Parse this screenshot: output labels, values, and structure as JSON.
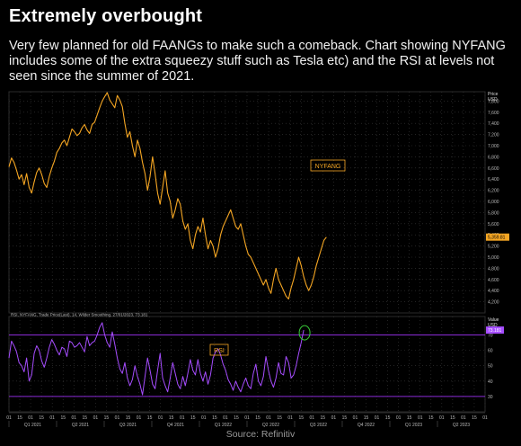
{
  "title": "Extremely overbought",
  "subtitle": "Very few planned for old FAANGs to make such a comeback. Chart showing NYFANG includes some of the extra squeezy stuff such as Tesla etc) and the RSI at levels not seen since the summer of 2021.",
  "source": "Source: Refinitiv",
  "colors": {
    "price_line": "#f5a623",
    "rsi_line": "#a64dff",
    "band": "#8a2bd6",
    "grid": "#3a3a3a"
  },
  "chart_data": [
    {
      "type": "line",
      "panel": "price",
      "label": "NYFANG",
      "axis_title": [
        "Price",
        "USD"
      ],
      "last_value_label": "5,359.81",
      "yticks": [
        4200,
        4400,
        4600,
        4800,
        5000,
        5200,
        5400,
        5600,
        5800,
        6000,
        6200,
        6400,
        6600,
        6800,
        7000,
        7200,
        7400,
        7600,
        7800
      ],
      "ylim": [
        4000,
        8000
      ],
      "grid": true,
      "series": [
        {
          "values": [
            6620,
            6780,
            6700,
            6560,
            6400,
            6480,
            6300,
            6500,
            6250,
            6150,
            6350,
            6520,
            6600,
            6480,
            6320,
            6250,
            6450,
            6600,
            6720,
            6880,
            6950,
            7050,
            7100,
            7000,
            7150,
            7300,
            7250,
            7180,
            7220,
            7320,
            7380,
            7280,
            7220,
            7380,
            7420,
            7550,
            7680,
            7800,
            7880,
            7950,
            7820,
            7750,
            7680,
            7900,
            7820,
            7700,
            7400,
            7150,
            7250,
            7000,
            6800,
            7100,
            6950,
            6700,
            6500,
            6200,
            6450,
            6800,
            6500,
            6150,
            5950,
            6250,
            6550,
            6150,
            6000,
            5700,
            5850,
            6050,
            5950,
            5650,
            5500,
            5600,
            5300,
            5150,
            5400,
            5550,
            5450,
            5700,
            5400,
            5150,
            5300,
            5200,
            5000,
            5150,
            5400,
            5550,
            5650,
            5750,
            5850,
            5700,
            5550,
            5500,
            5600,
            5400,
            5200,
            5050,
            5000,
            4900,
            4800,
            4700,
            4600,
            4500,
            4600,
            4450,
            4350,
            4600,
            4800,
            4600,
            4500,
            4400,
            4300,
            4250,
            4450,
            4600,
            4800,
            5000,
            4850,
            4650,
            4500,
            4400,
            4500,
            4650,
            4850,
            5000,
            5150,
            5300,
            5359.81
          ]
        }
      ]
    },
    {
      "type": "line",
      "panel": "rsi",
      "label": "RSI",
      "axis_title": [
        "Value",
        "USD"
      ],
      "legend_text": "RSI, NYFANG, Trade Price(Last), 14, Wilder Smoothing, 27/01/2023, 73.181",
      "last_value_label": "73.181",
      "yticks": [
        30,
        40,
        50,
        60,
        70
      ],
      "ylim": [
        20,
        82
      ],
      "bands": [
        30,
        70
      ],
      "grid": true,
      "series": [
        {
          "values": [
            55,
            66,
            63,
            59,
            52,
            50,
            46,
            55,
            40,
            44,
            58,
            63,
            60,
            53,
            49,
            55,
            62,
            67,
            64,
            60,
            57,
            62,
            61,
            56,
            66,
            65,
            62,
            63,
            65,
            62,
            59,
            69,
            63,
            65,
            66,
            70,
            75,
            78,
            70,
            65,
            62,
            72,
            64,
            55,
            48,
            45,
            52,
            42,
            37,
            41,
            50,
            43,
            38,
            31,
            43,
            55,
            47,
            38,
            35,
            47,
            58,
            42,
            37,
            33,
            42,
            52,
            45,
            38,
            35,
            43,
            37,
            45,
            54,
            47,
            44,
            54,
            45,
            40,
            46,
            38,
            44,
            55,
            59,
            61,
            57,
            51,
            47,
            41,
            38,
            34,
            40,
            36,
            33,
            38,
            42,
            37,
            35,
            45,
            51,
            40,
            37,
            43,
            56,
            47,
            40,
            36,
            42,
            52,
            45,
            44,
            56,
            52,
            42,
            44,
            50,
            58,
            65,
            73.181
          ]
        }
      ]
    }
  ],
  "x_axis": {
    "day_ticks": [
      "01",
      "15",
      "01",
      "15",
      "01",
      "15",
      "01",
      "15",
      "01",
      "15",
      "01",
      "15",
      "01",
      "15",
      "01",
      "15",
      "01",
      "15",
      "01",
      "15",
      "01",
      "15",
      "01",
      "15",
      "01",
      "15",
      "01",
      "15",
      "01",
      "15",
      "01",
      "15",
      "01",
      "15",
      "01",
      "15",
      "01",
      "15",
      "01",
      "15",
      "01",
      "15",
      "01",
      "15",
      "01"
    ],
    "quarters": [
      "Q1 2021",
      "Q2 2021",
      "Q3 2021",
      "Q4 2021",
      "Q1 2022",
      "Q2 2022",
      "Q3 2022",
      "Q4 2022",
      "Q1 2023",
      "Q2 2023"
    ]
  }
}
